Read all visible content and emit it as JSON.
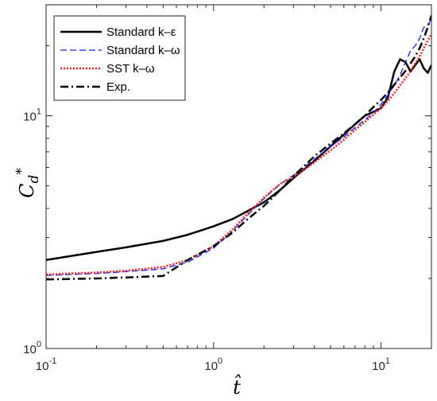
{
  "chart_data": {
    "type": "line",
    "xscale": "log",
    "yscale": "log",
    "xlim": [
      0.1,
      20
    ],
    "ylim": [
      1,
      30
    ],
    "xlabel": "t̂",
    "ylabel_base": "C",
    "ylabel_sub": "d",
    "ylabel_sup": "*",
    "x_ticks": [
      {
        "value": 0.1,
        "base": "10",
        "exp": "-1"
      },
      {
        "value": 1,
        "base": "10",
        "exp": "0"
      },
      {
        "value": 10,
        "base": "10",
        "exp": "1"
      }
    ],
    "y_ticks": [
      {
        "value": 1,
        "base": "10",
        "exp": "0"
      },
      {
        "value": 10,
        "base": "10",
        "exp": "1"
      }
    ],
    "legend_position": "top-left",
    "grid": false,
    "series": [
      {
        "name": "Standard k–ε",
        "color": "#000000",
        "style": "solid",
        "points": [
          [
            0.1,
            2.4
          ],
          [
            0.2,
            2.6
          ],
          [
            0.3,
            2.72
          ],
          [
            0.5,
            2.9
          ],
          [
            0.7,
            3.08
          ],
          [
            1.0,
            3.35
          ],
          [
            1.3,
            3.6
          ],
          [
            1.6,
            3.9
          ],
          [
            2,
            4.25
          ],
          [
            2.5,
            4.8
          ],
          [
            3,
            5.4
          ],
          [
            4,
            6.4
          ],
          [
            5,
            7.4
          ],
          [
            6,
            8.3
          ],
          [
            7,
            9.2
          ],
          [
            8,
            10.0
          ],
          [
            9,
            10.4
          ],
          [
            10,
            10.8
          ],
          [
            11,
            12.0
          ],
          [
            12,
            15.5
          ],
          [
            13,
            17.5
          ],
          [
            14,
            17.0
          ],
          [
            15,
            15.5
          ],
          [
            16,
            16.5
          ],
          [
            17,
            17.5
          ],
          [
            18,
            16.0
          ],
          [
            19,
            15.3
          ],
          [
            20,
            16.5
          ]
        ]
      },
      {
        "name": "Standard k–ω",
        "color": "#1a1aff",
        "style": "dashed",
        "points": [
          [
            0.1,
            2.06
          ],
          [
            0.2,
            2.1
          ],
          [
            0.3,
            2.14
          ],
          [
            0.5,
            2.2
          ],
          [
            0.7,
            2.35
          ],
          [
            1.0,
            2.7
          ],
          [
            1.3,
            3.2
          ],
          [
            1.6,
            3.75
          ],
          [
            2,
            4.4
          ],
          [
            2.5,
            5.1
          ],
          [
            3,
            5.55
          ],
          [
            4,
            6.5
          ],
          [
            5,
            7.4
          ],
          [
            6,
            8.1
          ],
          [
            7,
            8.9
          ],
          [
            8,
            9.6
          ],
          [
            9,
            10.3
          ],
          [
            10,
            11.2
          ],
          [
            11,
            12.3
          ],
          [
            12,
            13.5
          ],
          [
            13,
            15.0
          ],
          [
            14,
            17.0
          ],
          [
            15,
            19.0
          ],
          [
            16,
            20.0
          ],
          [
            17,
            21.5
          ],
          [
            18,
            24.0
          ],
          [
            19,
            24.5
          ],
          [
            20,
            26.0
          ]
        ]
      },
      {
        "name": "SST k–ω",
        "color": "#ff1a1a",
        "style": "dotted",
        "points": [
          [
            0.1,
            2.08
          ],
          [
            0.2,
            2.12
          ],
          [
            0.3,
            2.16
          ],
          [
            0.5,
            2.24
          ],
          [
            0.7,
            2.4
          ],
          [
            1.0,
            2.75
          ],
          [
            1.3,
            3.25
          ],
          [
            1.6,
            3.8
          ],
          [
            2,
            4.45
          ],
          [
            2.5,
            5.1
          ],
          [
            3,
            5.45
          ],
          [
            4,
            6.3
          ],
          [
            5,
            7.1
          ],
          [
            6,
            7.9
          ],
          [
            7,
            8.7
          ],
          [
            8,
            9.4
          ],
          [
            9,
            10.1
          ],
          [
            10,
            10.8
          ],
          [
            11,
            11.6
          ],
          [
            12,
            12.5
          ],
          [
            13,
            13.5
          ],
          [
            14,
            14.5
          ],
          [
            15,
            15.5
          ],
          [
            16,
            16.8
          ],
          [
            17,
            18.0
          ],
          [
            18,
            19.5
          ],
          [
            19,
            21.0
          ],
          [
            20,
            22.5
          ]
        ]
      },
      {
        "name": "Exp.",
        "color": "#000000",
        "style": "dashdot",
        "points": [
          [
            0.1,
            1.98
          ],
          [
            0.2,
            2.0
          ],
          [
            0.3,
            2.02
          ],
          [
            0.5,
            2.05
          ],
          [
            0.7,
            2.4
          ],
          [
            1.0,
            2.75
          ],
          [
            1.3,
            3.15
          ],
          [
            1.6,
            3.6
          ],
          [
            2,
            4.1
          ],
          [
            2.5,
            4.8
          ],
          [
            3,
            5.5
          ],
          [
            4,
            6.7
          ],
          [
            5,
            7.6
          ],
          [
            6,
            8.4
          ],
          [
            7,
            9.2
          ],
          [
            8,
            10.0
          ],
          [
            9,
            10.9
          ],
          [
            10,
            11.7
          ],
          [
            11,
            12.6
          ],
          [
            12,
            13.6
          ],
          [
            13,
            14.6
          ],
          [
            14,
            15.6
          ],
          [
            15,
            16.8
          ],
          [
            16,
            18.0
          ],
          [
            17,
            19.5
          ],
          [
            18,
            21.5
          ],
          [
            19,
            24.0
          ],
          [
            20,
            27.0
          ]
        ]
      }
    ]
  }
}
